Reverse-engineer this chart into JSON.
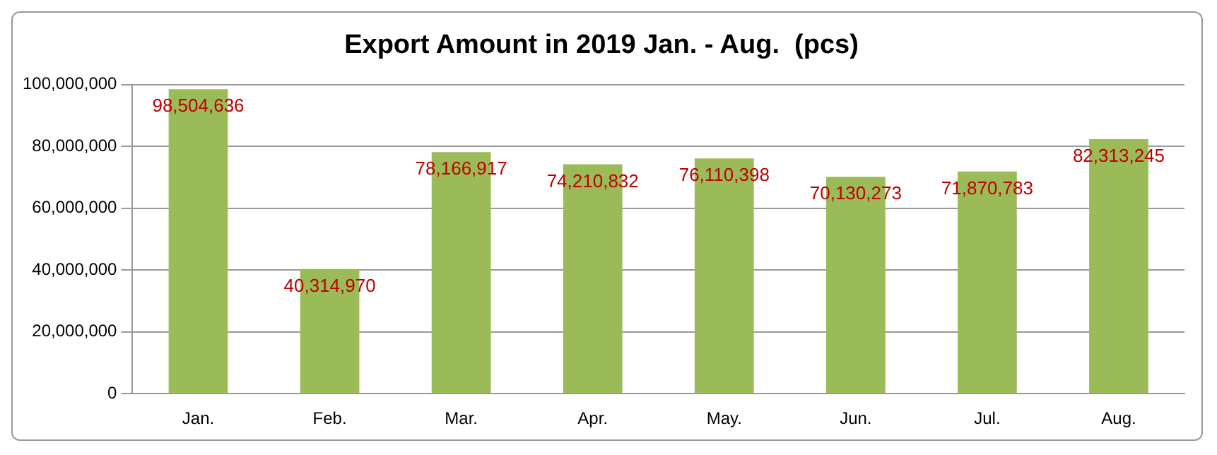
{
  "chart_data": {
    "type": "bar",
    "title": "Export Amount in 2019 Jan. - Aug.  (pcs)",
    "categories": [
      "Jan.",
      "Feb.",
      "Mar.",
      "Apr.",
      "May.",
      "Jun.",
      "Jul.",
      "Aug."
    ],
    "values": [
      98504636,
      40314970,
      78166917,
      74210832,
      76110398,
      70130273,
      71870783,
      82313245
    ],
    "color": "#9bbb59",
    "ylim": [
      0,
      100000000
    ],
    "yticks": [
      {
        "value": 0,
        "label": "0"
      },
      {
        "value": 20000000,
        "label": "20,000,000"
      },
      {
        "value": 40000000,
        "label": "40,000,000"
      },
      {
        "value": 60000000,
        "label": "60,000,000"
      },
      {
        "value": 80000000,
        "label": "80,000,000"
      },
      {
        "value": 100000000,
        "label": "100,000,000"
      }
    ],
    "value_labels": [
      "98,504,636",
      "40,314,970",
      "78,166,917",
      "74,210,832",
      "76,110,398",
      "70,130,273",
      "71,870,783",
      "82,313,245"
    ],
    "grid": "y"
  }
}
